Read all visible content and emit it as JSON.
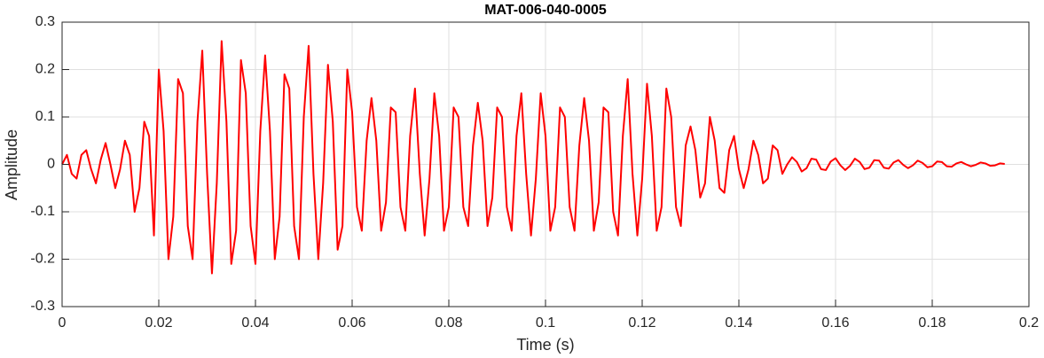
{
  "chart_data": {
    "type": "line",
    "title": "MAT-006-040-0005",
    "x_label": "Time (s)",
    "y_label": "Amplitude",
    "color": "#ff0000",
    "grid": true,
    "xlim": [
      0,
      0.2
    ],
    "xticks": [
      0,
      0.02,
      0.04,
      0.06,
      0.08,
      0.1,
      0.12,
      0.14,
      0.16,
      0.18,
      0.2
    ],
    "ylim": [
      -0.3,
      0.3
    ],
    "yticks": [
      -0.3,
      -0.2,
      -0.1,
      0,
      0.1,
      0.2,
      0.3
    ],
    "x": [
      0,
      0.001,
      0.002,
      0.003,
      0.004,
      0.005,
      0.006,
      0.007,
      0.008,
      0.009,
      0.01,
      0.011,
      0.012,
      0.013,
      0.014,
      0.015,
      0.016,
      0.017,
      0.018,
      0.019,
      0.02,
      0.021,
      0.022,
      0.023,
      0.024,
      0.025,
      0.026,
      0.027,
      0.028,
      0.029,
      0.03,
      0.031,
      0.032,
      0.033,
      0.034,
      0.035,
      0.036,
      0.037,
      0.038,
      0.039,
      0.04,
      0.041,
      0.042,
      0.043,
      0.044,
      0.045,
      0.046,
      0.047,
      0.048,
      0.049,
      0.05,
      0.051,
      0.052,
      0.053,
      0.054,
      0.055,
      0.056,
      0.057,
      0.058,
      0.059,
      0.06,
      0.061,
      0.062,
      0.063,
      0.064,
      0.065,
      0.066,
      0.067,
      0.068,
      0.069,
      0.07,
      0.071,
      0.072,
      0.073,
      0.074,
      0.075,
      0.076,
      0.077,
      0.078,
      0.079,
      0.08,
      0.081,
      0.082,
      0.083,
      0.084,
      0.085,
      0.086,
      0.087,
      0.088,
      0.089,
      0.09,
      0.091,
      0.092,
      0.093,
      0.094,
      0.095,
      0.096,
      0.097,
      0.098,
      0.099,
      0.1,
      0.101,
      0.102,
      0.103,
      0.104,
      0.105,
      0.106,
      0.107,
      0.108,
      0.109,
      0.11,
      0.111,
      0.112,
      0.113,
      0.114,
      0.115,
      0.116,
      0.117,
      0.118,
      0.119,
      0.12,
      0.121,
      0.122,
      0.123,
      0.124,
      0.125,
      0.126,
      0.127,
      0.128,
      0.129,
      0.13,
      0.131,
      0.132,
      0.133,
      0.134,
      0.135,
      0.136,
      0.137,
      0.138,
      0.139,
      0.14,
      0.141,
      0.142,
      0.143,
      0.144,
      0.145,
      0.146,
      0.147,
      0.148,
      0.149,
      0.15,
      0.151,
      0.152,
      0.153,
      0.154,
      0.155,
      0.156,
      0.157,
      0.158,
      0.159,
      0.16,
      0.161,
      0.162,
      0.163,
      0.164,
      0.165,
      0.166,
      0.167,
      0.168,
      0.169,
      0.17,
      0.171,
      0.172,
      0.173,
      0.174,
      0.175,
      0.176,
      0.177,
      0.178,
      0.179,
      0.18,
      0.181,
      0.182,
      0.183,
      0.184,
      0.185,
      0.186,
      0.187,
      0.188,
      0.189,
      0.19,
      0.191,
      0.192,
      0.193,
      0.194,
      0.195
    ],
    "y": [
      0,
      0.02,
      -0.02,
      -0.03,
      0.02,
      0.03,
      -0.01,
      -0.04,
      0.01,
      0.045,
      0.0,
      -0.05,
      -0.01,
      0.05,
      0.02,
      -0.1,
      -0.05,
      0.09,
      0.06,
      -0.15,
      0.2,
      0.07,
      -0.2,
      -0.11,
      0.18,
      0.15,
      -0.13,
      -0.2,
      0.09,
      0.24,
      -0.02,
      -0.23,
      -0.04,
      0.26,
      0.09,
      -0.21,
      -0.14,
      0.22,
      0.15,
      -0.13,
      -0.21,
      0.07,
      0.23,
      0.07,
      -0.2,
      -0.11,
      0.19,
      0.16,
      -0.13,
      -0.2,
      0.1,
      0.25,
      -0.02,
      -0.2,
      -0.04,
      0.21,
      0.09,
      -0.18,
      -0.13,
      0.2,
      0.11,
      -0.09,
      -0.14,
      0.05,
      0.14,
      0.05,
      -0.14,
      -0.08,
      0.12,
      0.11,
      -0.09,
      -0.14,
      0.06,
      0.16,
      -0.02,
      -0.15,
      -0.03,
      0.15,
      0.06,
      -0.14,
      -0.09,
      0.12,
      0.1,
      -0.09,
      -0.13,
      0.04,
      0.13,
      0.05,
      -0.13,
      -0.07,
      0.12,
      0.1,
      -0.09,
      -0.14,
      0.06,
      0.15,
      -0.02,
      -0.15,
      -0.03,
      0.15,
      0.06,
      -0.14,
      -0.09,
      0.12,
      0.1,
      -0.09,
      -0.14,
      0.04,
      0.14,
      0.05,
      -0.14,
      -0.08,
      0.12,
      0.11,
      -0.1,
      -0.15,
      0.06,
      0.18,
      -0.02,
      -0.15,
      -0.03,
      0.17,
      0.06,
      -0.14,
      -0.09,
      0.16,
      0.1,
      -0.09,
      -0.13,
      0.04,
      0.08,
      0.03,
      -0.07,
      -0.04,
      0.1,
      0.05,
      -0.05,
      -0.06,
      0.03,
      0.06,
      -0.01,
      -0.05,
      -0.01,
      0.05,
      0.02,
      -0.04,
      -0.03,
      0.04,
      0.03,
      -0.02,
      0.0,
      0.015,
      0.005,
      -0.015,
      -0.008,
      0.012,
      0.01,
      -0.01,
      -0.012,
      0.006,
      0.013,
      -0.002,
      -0.012,
      -0.003,
      0.012,
      0.005,
      -0.01,
      -0.007,
      0.009,
      0.008,
      -0.007,
      -0.009,
      0.004,
      0.009,
      -0.001,
      -0.008,
      -0.002,
      0.008,
      0.003,
      -0.006,
      -0.004,
      0.006,
      0.005,
      -0.004,
      -0.005,
      0.002,
      0.005,
      0.0,
      -0.004,
      -0.001,
      0.004,
      0.002,
      -0.003,
      -0.002,
      0.002,
      0.001
    ]
  }
}
